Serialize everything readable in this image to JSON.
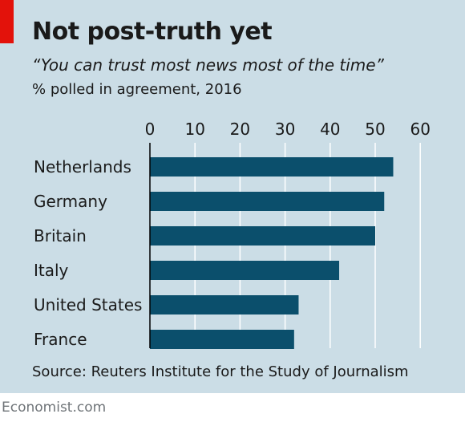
{
  "header": {
    "title": "Not post-truth yet",
    "subtitle": "“You can trust most news most of the time”",
    "unit": "% polled in agreement, 2016"
  },
  "footer": {
    "source": "Source: Reuters Institute for the Study of Journalism",
    "brand": "Economist.com"
  },
  "colors": {
    "bar": "#0b4f6c",
    "background": "#cbdde6",
    "accent": "#e3120b",
    "grid": "#ffffff",
    "axis": "#000000"
  },
  "chart_data": {
    "type": "bar",
    "orientation": "horizontal",
    "categories": [
      "Netherlands",
      "Germany",
      "Britain",
      "Italy",
      "United States",
      "France"
    ],
    "values": [
      54,
      52,
      50,
      42,
      33,
      32
    ],
    "xlim": [
      0,
      60
    ],
    "xticks": [
      "0",
      "10",
      "20",
      "30",
      "40",
      "50",
      "60"
    ],
    "grid": true,
    "tick_position": "top"
  }
}
